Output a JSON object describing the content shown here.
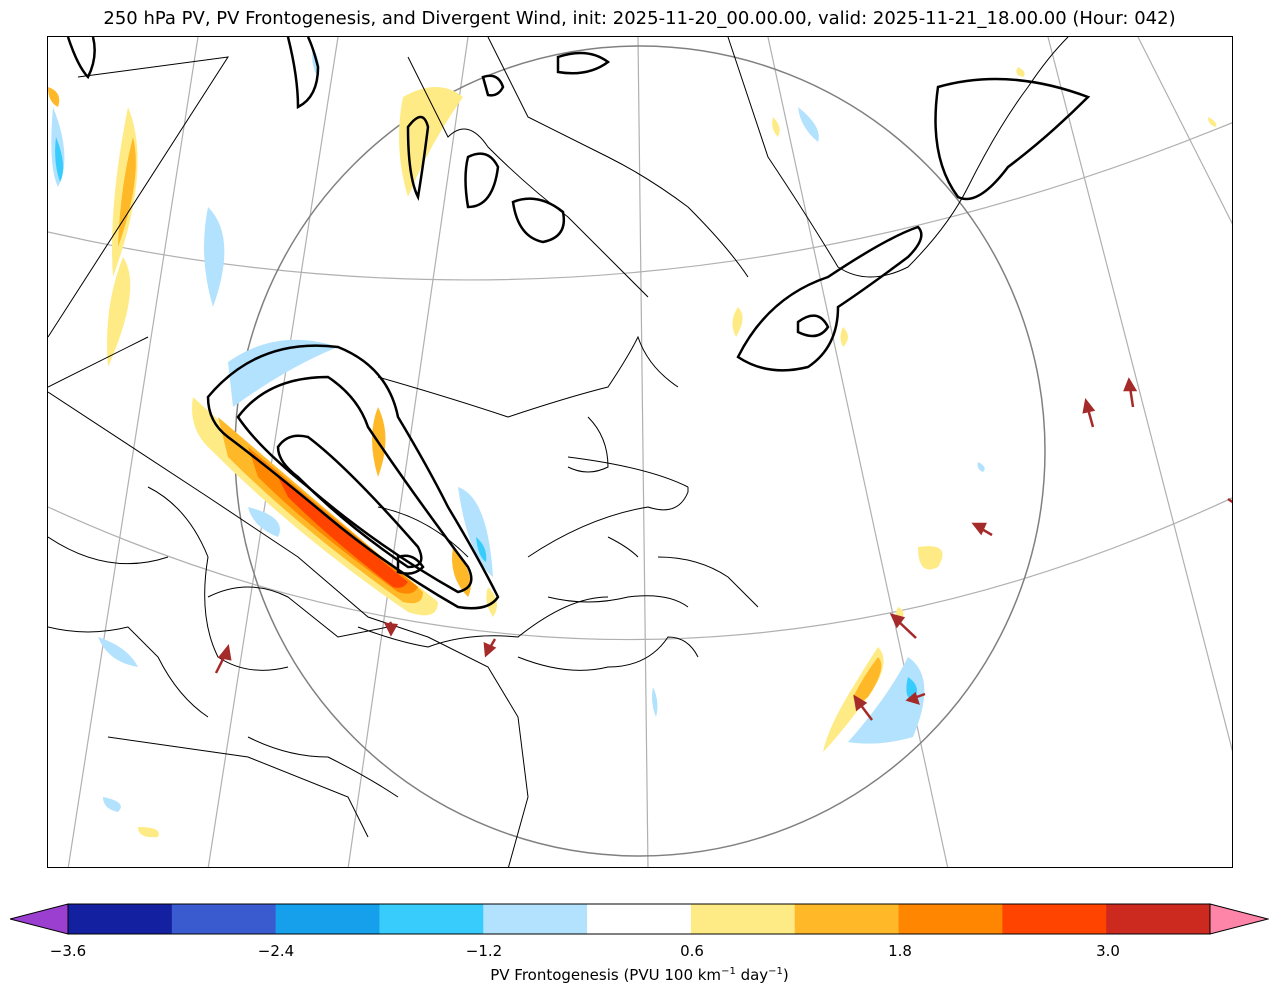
{
  "title": "250 hPa PV, PV Frontogenesis, and Divergent Wind, init: 2025-11-20_00.00.00, valid: 2025-11-21_18.00.00 (Hour: 042)",
  "colorbar": {
    "label_prefix": "PV Frontogenesis (PVU 100 km",
    "label_exp1": "−1",
    "label_mid": " day",
    "label_exp2": "−1",
    "label_suffix": ")",
    "ticks": [
      "−3.6",
      "−2.4",
      "−1.2",
      "0.6",
      "1.8",
      "3.0"
    ],
    "colors": [
      "#9b3fd1",
      "#1320a0",
      "#3a5bd0",
      "#16a0ec",
      "#38ccfd",
      "#b3e2fe",
      "#ffffff",
      "#ffeb85",
      "#ffb928",
      "#ff8600",
      "#ff4400",
      "#cc2a1f",
      "#ff85a8"
    ]
  },
  "legend_colors": {
    "pv_contour": "#000000",
    "wind_arrow": "#a52a2a",
    "graticule": "#b0b0b0",
    "boundary_circle": "#808080"
  }
}
